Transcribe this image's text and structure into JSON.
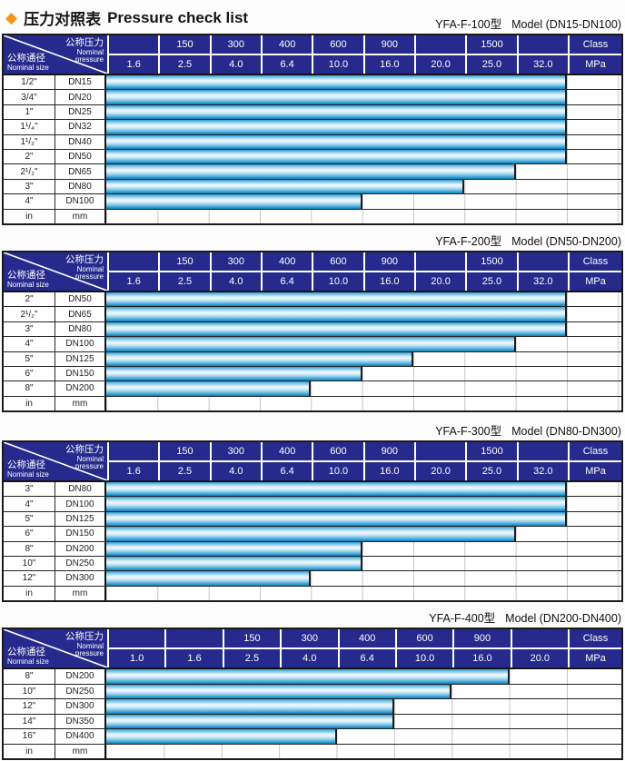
{
  "title": {
    "diamond_icon": "◆",
    "cn": "压力对照表",
    "en": "Pressure check list"
  },
  "colors": {
    "header_navy": "#262a8c",
    "diamond_orange": "#f7941d",
    "bar_blue": "#2c9ed3",
    "bar_highlight": "#eef9fe",
    "grid_gray": "#c6c6c6"
  },
  "header_labels": {
    "pressure_cn": "公称压力",
    "pressure_en1": "Nominal",
    "pressure_en2": "pressure",
    "size_cn": "公称通径",
    "size_en": "Nominal size",
    "class_label": "Class",
    "mpa_label": "MPa"
  },
  "tables": [
    {
      "model": "YFA-F-100型",
      "range": "Model (DN15-DN100)",
      "class_row": [
        "",
        "150",
        "300",
        "400",
        "600",
        "900",
        "",
        "1500",
        ""
      ],
      "mpa_row": [
        "1.6",
        "2.5",
        "4.0",
        "6.4",
        "10.0",
        "16.0",
        "20.0",
        "25.0",
        "32.0"
      ],
      "rows": [
        {
          "inch": "1/2\"",
          "dn": "DN15",
          "bar_cols": 9,
          "max_mpa": "32.0"
        },
        {
          "inch": "3/4\"",
          "dn": "DN20",
          "bar_cols": 9,
          "max_mpa": "32.0"
        },
        {
          "inch": "1\"",
          "dn": "DN25",
          "bar_cols": 9,
          "max_mpa": "32.0"
        },
        {
          "inch": "1¹/₄\"",
          "dn": "DN32",
          "bar_cols": 9,
          "max_mpa": "32.0"
        },
        {
          "inch": "1¹/₂\"",
          "dn": "DN40",
          "bar_cols": 9,
          "max_mpa": "32.0"
        },
        {
          "inch": "2\"",
          "dn": "DN50",
          "bar_cols": 9,
          "max_mpa": "32.0"
        },
        {
          "inch": "2¹/₂\"",
          "dn": "DN65",
          "bar_cols": 8,
          "max_mpa": "25.0"
        },
        {
          "inch": "3\"",
          "dn": "DN80",
          "bar_cols": 7,
          "max_mpa": "20.0"
        },
        {
          "inch": "4\"",
          "dn": "DN100",
          "bar_cols": 5,
          "max_mpa": "10.0"
        },
        {
          "inch": "in",
          "dn": "mm",
          "bar_cols": 0,
          "max_mpa": ""
        }
      ]
    },
    {
      "model": "YFA-F-200型",
      "range": "Model (DN50-DN200)",
      "class_row": [
        "",
        "150",
        "300",
        "400",
        "600",
        "900",
        "",
        "1500",
        ""
      ],
      "mpa_row": [
        "1.6",
        "2.5",
        "4.0",
        "6.4",
        "10.0",
        "16.0",
        "20.0",
        "25.0",
        "32.0"
      ],
      "rows": [
        {
          "inch": "2\"",
          "dn": "DN50",
          "bar_cols": 9,
          "max_mpa": "32.0"
        },
        {
          "inch": "2¹/₂\"",
          "dn": "DN65",
          "bar_cols": 9,
          "max_mpa": "32.0"
        },
        {
          "inch": "3\"",
          "dn": "DN80",
          "bar_cols": 9,
          "max_mpa": "32.0"
        },
        {
          "inch": "4\"",
          "dn": "DN100",
          "bar_cols": 8,
          "max_mpa": "25.0"
        },
        {
          "inch": "5\"",
          "dn": "DN125",
          "bar_cols": 6,
          "max_mpa": "16.0"
        },
        {
          "inch": "6\"",
          "dn": "DN150",
          "bar_cols": 5,
          "max_mpa": "10.0"
        },
        {
          "inch": "8\"",
          "dn": "DN200",
          "bar_cols": 4,
          "max_mpa": "6.4"
        },
        {
          "inch": "in",
          "dn": "mm",
          "bar_cols": 0,
          "max_mpa": ""
        }
      ]
    },
    {
      "model": "YFA-F-300型",
      "range": "Model (DN80-DN300)",
      "class_row": [
        "",
        "150",
        "300",
        "400",
        "600",
        "900",
        "",
        "1500",
        ""
      ],
      "mpa_row": [
        "1.6",
        "2.5",
        "4.0",
        "6.4",
        "10.0",
        "16.0",
        "20.0",
        "25.0",
        "32.0"
      ],
      "rows": [
        {
          "inch": "3\"",
          "dn": "DN80",
          "bar_cols": 9,
          "max_mpa": "32.0"
        },
        {
          "inch": "4\"",
          "dn": "DN100",
          "bar_cols": 9,
          "max_mpa": "32.0"
        },
        {
          "inch": "5\"",
          "dn": "DN125",
          "bar_cols": 9,
          "max_mpa": "32.0"
        },
        {
          "inch": "6\"",
          "dn": "DN150",
          "bar_cols": 8,
          "max_mpa": "25.0"
        },
        {
          "inch": "8\"",
          "dn": "DN200",
          "bar_cols": 5,
          "max_mpa": "10.0"
        },
        {
          "inch": "10\"",
          "dn": "DN250",
          "bar_cols": 5,
          "max_mpa": "10.0"
        },
        {
          "inch": "12\"",
          "dn": "DN300",
          "bar_cols": 4,
          "max_mpa": "6.4"
        },
        {
          "inch": "in",
          "dn": "mm",
          "bar_cols": 0,
          "max_mpa": ""
        }
      ]
    },
    {
      "model": "YFA-F-400型",
      "range": "Model (DN200-DN400)",
      "class_row": [
        "",
        "",
        "150",
        "300",
        "400",
        "600",
        "900",
        ""
      ],
      "mpa_row": [
        "1.0",
        "1.6",
        "2.5",
        "4.0",
        "6.4",
        "10.0",
        "16.0",
        "20.0"
      ],
      "rows": [
        {
          "inch": "8\"",
          "dn": "DN200",
          "bar_cols": 7,
          "max_mpa": "16.0"
        },
        {
          "inch": "10\"",
          "dn": "DN250",
          "bar_cols": 6,
          "max_mpa": "10.0"
        },
        {
          "inch": "12\"",
          "dn": "DN300",
          "bar_cols": 5,
          "max_mpa": "6.4"
        },
        {
          "inch": "14\"",
          "dn": "DN350",
          "bar_cols": 5,
          "max_mpa": "6.4"
        },
        {
          "inch": "16\"",
          "dn": "DN400",
          "bar_cols": 4,
          "max_mpa": "4.0"
        },
        {
          "inch": "in",
          "dn": "mm",
          "bar_cols": 0,
          "max_mpa": ""
        }
      ]
    }
  ]
}
